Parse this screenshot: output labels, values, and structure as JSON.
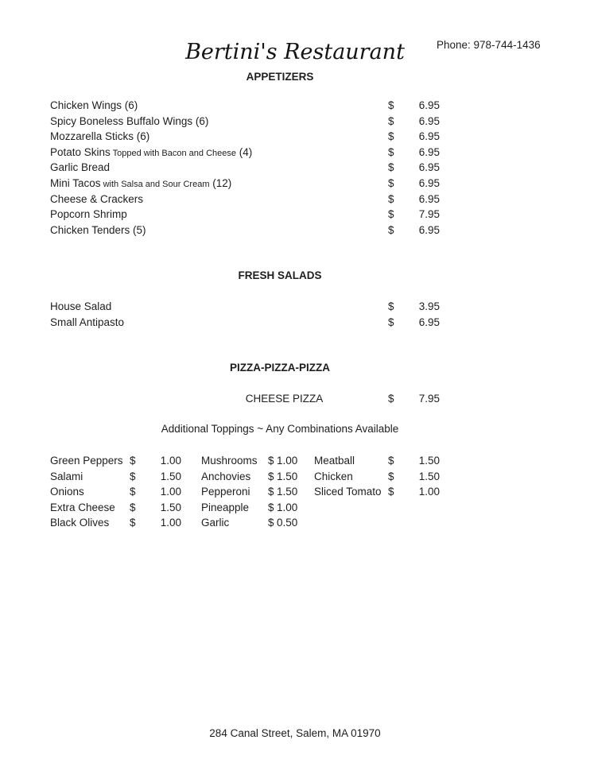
{
  "currency": "$",
  "page": {
    "title": "Bertini's Restaurant",
    "phone": "Phone: 978-744-1436",
    "footer_address": "284 Canal Street, Salem, MA 01970"
  },
  "appetizers": {
    "heading": "APPETIZERS",
    "items": [
      {
        "name": "Chicken Wings (6)",
        "price": "6.95"
      },
      {
        "name": "Spicy Boneless Buffalo Wings (6)",
        "price": "6.95"
      },
      {
        "name": "Mozzarella Sticks (6)",
        "price": "6.95"
      },
      {
        "name": "Potato Skins",
        "detail": " Topped with Bacon and Cheese",
        "tail": " (4)",
        "price": "6.95"
      },
      {
        "name": "Garlic Bread",
        "price": "6.95"
      },
      {
        "name": "Mini Tacos",
        "detail": " with Salsa and Sour Cream",
        "tail": " (12)",
        "price": "6.95"
      },
      {
        "name": "Cheese & Crackers",
        "price": "6.95"
      },
      {
        "name": "Popcorn Shrimp",
        "price": "7.95"
      },
      {
        "name": "Chicken Tenders (5)",
        "price": "6.95"
      }
    ]
  },
  "salads": {
    "heading": "FRESH SALADS",
    "items": [
      {
        "name": "House Salad",
        "price": "3.95"
      },
      {
        "name": "Small Antipasto",
        "price": "6.95"
      }
    ]
  },
  "pizza": {
    "heading": "PIZZA-PIZZA-PIZZA",
    "cheese_pizza_label": "CHEESE PIZZA",
    "cheese_pizza_price": "7.95",
    "toppings_note": "Additional Toppings ~ Any Combinations Available",
    "toppings_col1": [
      {
        "name": "Green Peppers",
        "price": "1.00"
      },
      {
        "name": "Salami",
        "price": "1.50"
      },
      {
        "name": "Onions",
        "price": "1.00"
      },
      {
        "name": "Extra Cheese",
        "price": "1.50"
      },
      {
        "name": "Black Olives",
        "price": "1.00"
      }
    ],
    "toppings_col2": [
      {
        "name": "Mushrooms",
        "price": "1.00"
      },
      {
        "name": "Anchovies",
        "price": "1.50"
      },
      {
        "name": "Pepperoni",
        "price": "1.50"
      },
      {
        "name": "Pineapple",
        "price": "1.00"
      },
      {
        "name": "Garlic",
        "price": "0.50"
      }
    ],
    "toppings_col3": [
      {
        "name": "Meatball",
        "price": "1.50"
      },
      {
        "name": "Chicken",
        "price": "1.50"
      },
      {
        "name": "Sliced Tomato",
        "price": "1.00"
      }
    ]
  }
}
